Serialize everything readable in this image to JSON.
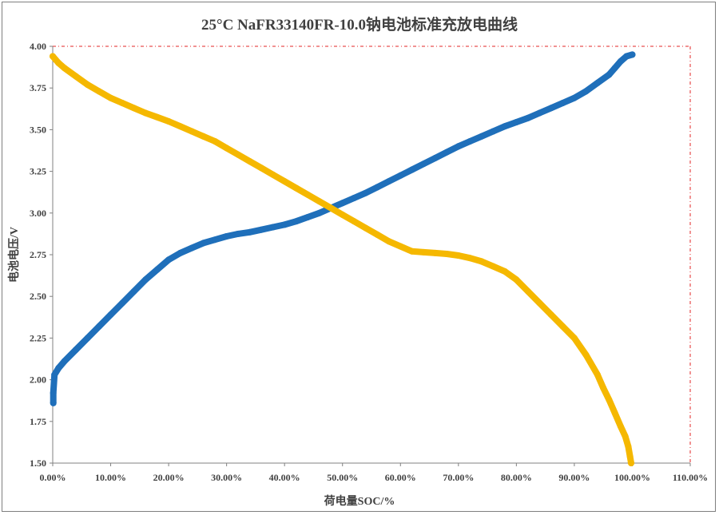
{
  "chart_data": {
    "type": "scatter",
    "title": "25°C NaFR33140FR-10.0钠电池标准充放电曲线",
    "xlabel": "荷电量SOC/%",
    "ylabel": "电池电压/V",
    "xlim": [
      0,
      110
    ],
    "ylim": [
      1.5,
      4.0
    ],
    "x_ticks": [
      "0.00%",
      "10.00%",
      "20.00%",
      "30.00%",
      "40.00%",
      "50.00%",
      "60.00%",
      "70.00%",
      "80.00%",
      "90.00%",
      "100.00%",
      "110.00%"
    ],
    "y_ticks": [
      "4.00",
      "3.75",
      "3.50",
      "3.25",
      "3.00",
      "2.75",
      "2.50",
      "2.25",
      "2.00",
      "1.75",
      "1.50"
    ],
    "grid": false,
    "legend": "none",
    "series": [
      {
        "color": "#1f6fba",
        "x": [
          0.1,
          0.1,
          0.3,
          1,
          2,
          4,
          6,
          8,
          10,
          12,
          14,
          16,
          18,
          20,
          22,
          24,
          26,
          28,
          30,
          32,
          34,
          36,
          38,
          40,
          42,
          44,
          46,
          48,
          50,
          52,
          54,
          56,
          58,
          60,
          62,
          64,
          66,
          68,
          70,
          72,
          74,
          76,
          78,
          80,
          82,
          84,
          86,
          88,
          90,
          92,
          94,
          96,
          97,
          98,
          99,
          100
        ],
        "y": [
          1.86,
          1.92,
          2.03,
          2.07,
          2.11,
          2.18,
          2.25,
          2.32,
          2.39,
          2.46,
          2.53,
          2.6,
          2.66,
          2.72,
          2.76,
          2.79,
          2.82,
          2.84,
          2.86,
          2.875,
          2.885,
          2.9,
          2.915,
          2.93,
          2.95,
          2.975,
          3.0,
          3.03,
          3.06,
          3.09,
          3.12,
          3.155,
          3.19,
          3.225,
          3.26,
          3.295,
          3.33,
          3.365,
          3.4,
          3.43,
          3.46,
          3.49,
          3.52,
          3.545,
          3.57,
          3.6,
          3.63,
          3.66,
          3.69,
          3.73,
          3.78,
          3.83,
          3.87,
          3.91,
          3.94,
          3.95
        ]
      },
      {
        "color": "#f5b800",
        "x": [
          0,
          0.5,
          1,
          2,
          4,
          6,
          8,
          10,
          12,
          14,
          16,
          18,
          20,
          22,
          24,
          26,
          28,
          30,
          32,
          34,
          36,
          38,
          40,
          42,
          44,
          46,
          48,
          50,
          52,
          54,
          56,
          58,
          60,
          62,
          64,
          66,
          68,
          70,
          72,
          74,
          76,
          78,
          80,
          82,
          84,
          86,
          88,
          90,
          92,
          94,
          95,
          96,
          97,
          98,
          98.8,
          99.3,
          99.6,
          99.8
        ],
        "y": [
          3.94,
          3.92,
          3.9,
          3.87,
          3.82,
          3.77,
          3.73,
          3.69,
          3.66,
          3.63,
          3.6,
          3.575,
          3.55,
          3.52,
          3.49,
          3.46,
          3.43,
          3.39,
          3.35,
          3.31,
          3.27,
          3.23,
          3.19,
          3.15,
          3.11,
          3.07,
          3.03,
          2.99,
          2.95,
          2.91,
          2.87,
          2.83,
          2.8,
          2.77,
          2.765,
          2.76,
          2.755,
          2.745,
          2.73,
          2.71,
          2.68,
          2.65,
          2.6,
          2.53,
          2.46,
          2.39,
          2.32,
          2.25,
          2.15,
          2.03,
          1.95,
          1.88,
          1.8,
          1.72,
          1.66,
          1.6,
          1.54,
          1.5
        ]
      }
    ]
  }
}
